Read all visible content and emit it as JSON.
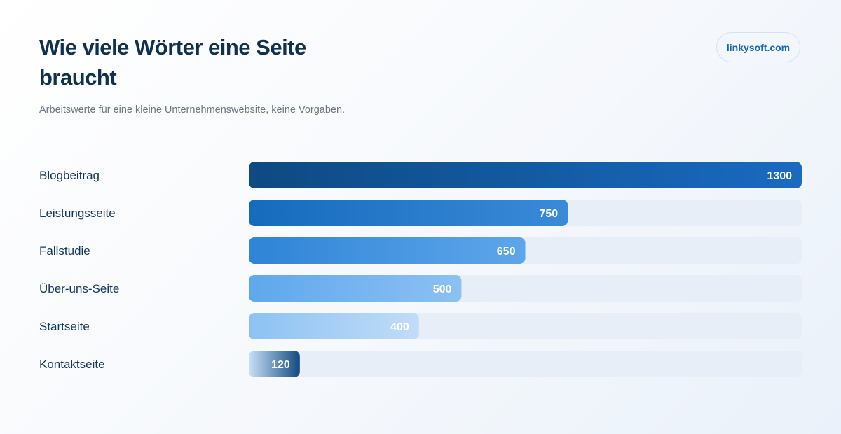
{
  "header": {
    "title": "Wie viele Wörter eine Seite braucht",
    "subtitle": "Arbeitswerte für eine kleine Unternehmenswebsite, keine Vorgaben.",
    "brand": "linkysoft.com"
  },
  "colors": {
    "track": "#e7eef7",
    "label": "#12375c",
    "title": "#10304f"
  },
  "chart_data": {
    "type": "bar",
    "orientation": "horizontal",
    "categories": [
      "Blogbeitrag",
      "Leistungsseite",
      "Fallstudie",
      "Über-uns-Seite",
      "Startseite",
      "Kontaktseite"
    ],
    "values": [
      1300,
      750,
      650,
      500,
      400,
      120
    ],
    "xlim": [
      0,
      1300
    ],
    "grid": false,
    "legend": "none",
    "bar_colors": [
      [
        "#0d4a82",
        "#1a6ac0"
      ],
      [
        "#166bbd",
        "#3a8ad8"
      ],
      [
        "#2f84d6",
        "#5ea6eb"
      ],
      [
        "#5ea8ec",
        "#8cc1f3"
      ],
      [
        "#8cc2f3",
        "#c1dcf7"
      ],
      [
        "#c9e0f8",
        "#124a82"
      ]
    ]
  }
}
